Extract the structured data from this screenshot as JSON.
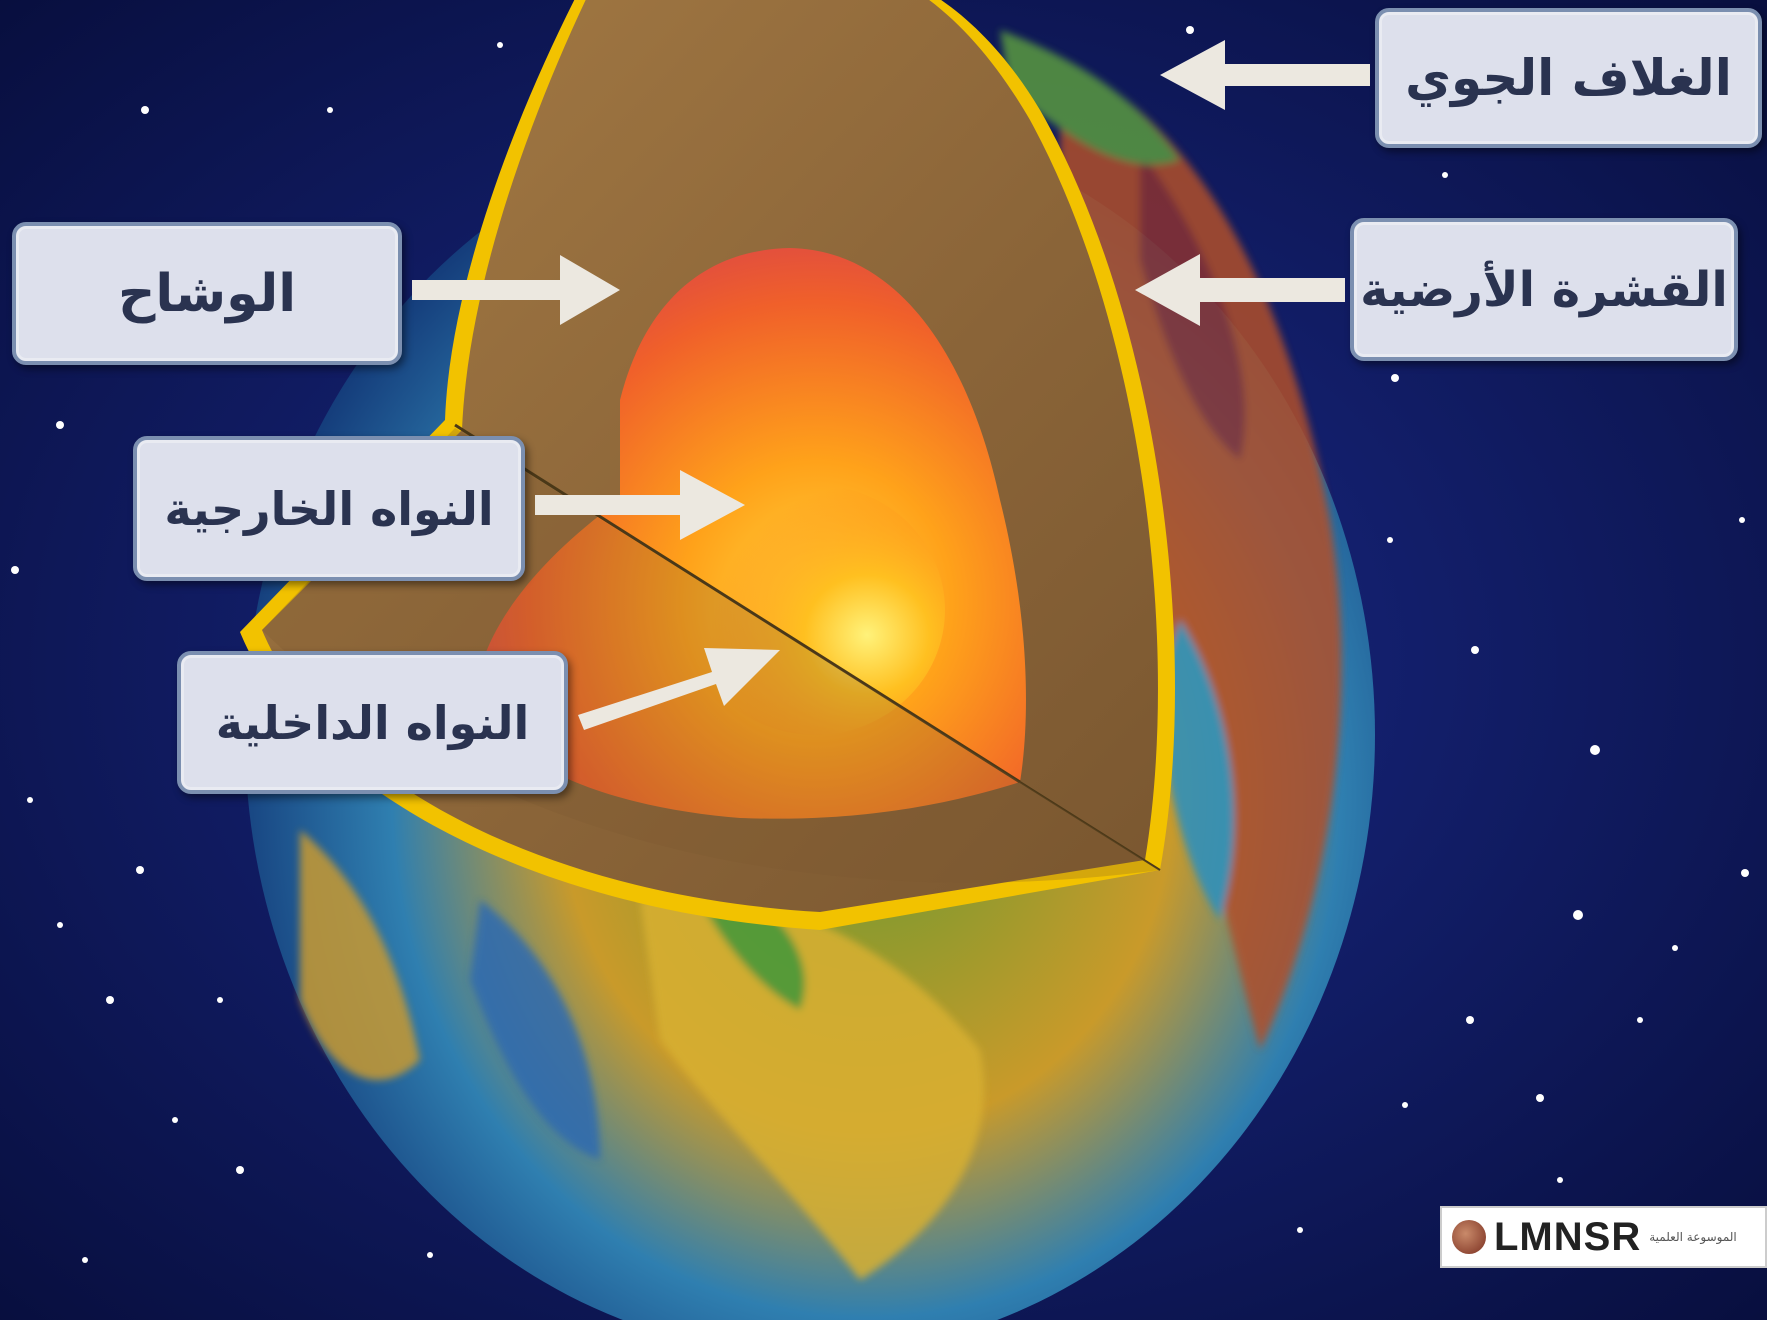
{
  "labels": {
    "atmosphere": "الغلاف الجوي",
    "crust": "القشرة الأرضية",
    "mantle": "الوشاح",
    "outer_core": "النواه الخارجية",
    "inner_core": "النواه الداخلية"
  },
  "watermark": {
    "text": "LMNSR",
    "subtext": "الموسوعة العلمية"
  },
  "colors": {
    "space": "#0b1450",
    "crust_outline": "#f2c200",
    "mantle": "#8f6a3c",
    "outer_core": "#e04848",
    "inner_core": "#ffe040",
    "label_box": "#dde0ec",
    "arrow": "#ece8e0"
  }
}
